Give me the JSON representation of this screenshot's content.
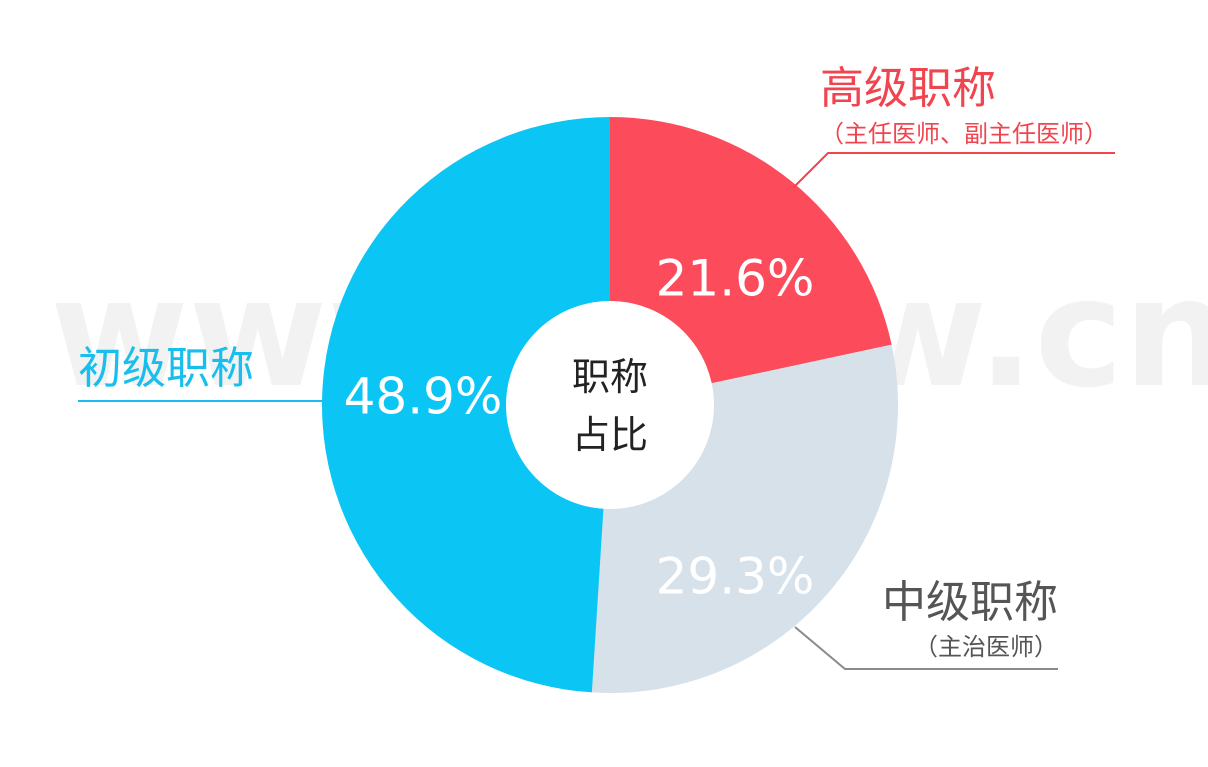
{
  "watermark": "www.zbsjw.cn",
  "chart_data": {
    "type": "pie",
    "center_label": [
      "职称",
      "占比"
    ],
    "slices": [
      {
        "name": "高级职称",
        "subtitle": "（主任医师、副主任医师）",
        "value": 21.6,
        "value_label": "21.6%",
        "color": "#fc4b5b"
      },
      {
        "name": "中级职称",
        "subtitle": "（主治医师）",
        "value": 29.3,
        "value_label": "29.3%",
        "color": "#d6e1e9"
      },
      {
        "name": "初级职称",
        "subtitle": "",
        "value": 48.9,
        "value_label": "48.9%",
        "color": "#0bc5f5"
      }
    ],
    "label_colors": {
      "高级职称": "#f0444f",
      "中级职称": "#555555",
      "初级职称": "#18bfee"
    },
    "leader_colors": {
      "高级职称": "#f0444f",
      "中级职称": "#8a8a8a",
      "初级职称": "#18bfee"
    }
  }
}
